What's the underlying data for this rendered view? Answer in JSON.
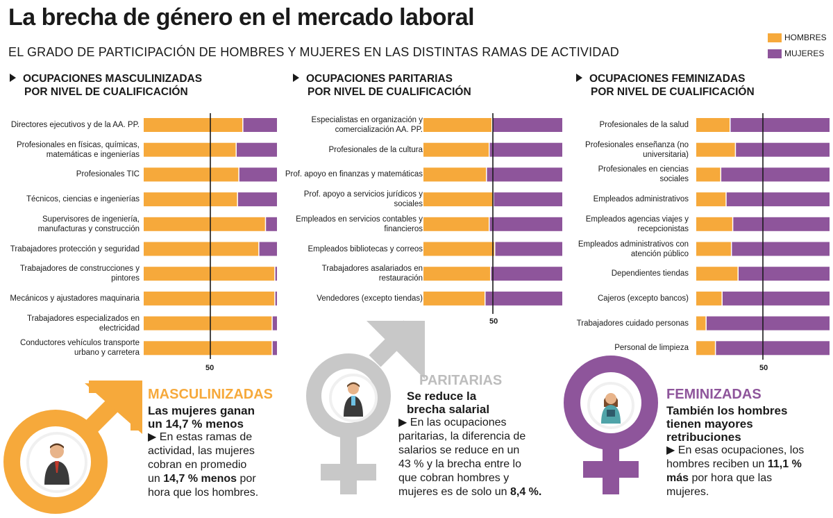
{
  "title": "La brecha de género en el mercado laboral",
  "subtitle": "EL GRADO DE PARTICIPACIÓN DE HOMBRES Y MUJERES EN LAS DISTINTAS RAMAS DE ACTIVIDAD",
  "legend": {
    "hombres": "HOMBRES",
    "mujeres": "MUJERES"
  },
  "colors": {
    "hombres": "#f6a93b",
    "mujeres": "#8e559b",
    "paritarias_head": "#bdbdbd",
    "symbol_gray": "#c8c8c8"
  },
  "sections": {
    "masc": {
      "line1": "OCUPACIONES MASCULINIZADAS",
      "line2": "POR NIVEL DE CUALIFICACIÓN",
      "fifty": "50"
    },
    "par": {
      "line1": "OCUPACIONES PARITARIAS",
      "line2": "POR NIVEL DE CUALIFICACIÓN",
      "fifty": "50"
    },
    "fem": {
      "line1": "OCUPACIONES FEMINIZADAS",
      "line2": "POR NIVEL DE CUALIFICACIÓN",
      "fifty": "50"
    }
  },
  "chart_data": [
    {
      "type": "bar",
      "orientation": "horizontal",
      "stacked": true,
      "title": "OCUPACIONES MASCULINIZADAS POR NIVEL DE CUALIFICACIÓN",
      "xlim": [
        0,
        100
      ],
      "reference_line": 50,
      "categories": [
        "Directores ejecutivos y de la AA. PP.",
        "Profesionales en físicas, químicas, matemáticas e ingenierías",
        "Profesionales TIC",
        "Técnicos, ciencias e ingenierías",
        "Supervisores de ingeniería, manufacturas y construcción",
        "Trabajadores protección y seguridad",
        "Trabajadores de construcciones y pintores",
        "Mecánicos y ajustadores maquinaria",
        "Trabajadores especializados en electricidad",
        "Conductores vehículos transporte urbano y carretera"
      ],
      "series": [
        {
          "name": "HOMBRES",
          "values": [
            74,
            69,
            71,
            70,
            91,
            86,
            98,
            98,
            96,
            96
          ]
        },
        {
          "name": "MUJERES",
          "values": [
            26,
            31,
            29,
            30,
            9,
            14,
            2,
            2,
            4,
            4
          ]
        }
      ]
    },
    {
      "type": "bar",
      "orientation": "horizontal",
      "stacked": true,
      "title": "OCUPACIONES PARITARIAS POR NIVEL DE CUALIFICACIÓN",
      "xlim": [
        0,
        100
      ],
      "reference_line": 50,
      "categories": [
        "Especialistas en organización y comercialización AA. PP.",
        "Profesionales de la cultura",
        "Prof. apoyo en finanzas y matemáticas",
        "Prof. apoyo a servicios jurídicos y sociales",
        "Empleados en servicios contables y financieros",
        "Empleados bibliotecas y correos",
        "Trabajadores asalariados en restauración",
        "Vendedores (excepto tiendas)"
      ],
      "series": [
        {
          "name": "HOMBRES",
          "values": [
            49,
            47,
            45,
            50,
            47,
            51,
            48,
            44
          ]
        },
        {
          "name": "MUJERES",
          "values": [
            51,
            53,
            55,
            50,
            53,
            49,
            52,
            56
          ]
        }
      ]
    },
    {
      "type": "bar",
      "orientation": "horizontal",
      "stacked": true,
      "title": "OCUPACIONES FEMINIZADAS POR NIVEL DE CUALIFICACIÓN",
      "xlim": [
        0,
        100
      ],
      "reference_line": 50,
      "categories": [
        "Profesionales de la salud",
        "Profesionales enseñanza (no universitaria)",
        "Profesionales en ciencias sociales",
        "Empleados administrativos",
        "Empleados agencias viajes y recepcionistas",
        "Empleados administrativos con atención público",
        "Dependientes tiendas",
        "Cajeros (excepto bancos)",
        "Trabajadores cuidado personas",
        "Personal de limpieza"
      ],
      "series": [
        {
          "name": "HOMBRES",
          "values": [
            25,
            29,
            18,
            22,
            27,
            26,
            31,
            19,
            7,
            14
          ]
        },
        {
          "name": "MUJERES",
          "values": [
            75,
            71,
            82,
            78,
            73,
            74,
            69,
            81,
            93,
            86
          ]
        }
      ]
    }
  ],
  "panels": {
    "masc": {
      "head": "MASCULINIZADAS",
      "sub1": "Las mujeres ganan",
      "sub2": "un 14,7 % menos",
      "b1": "En estas ramas de",
      "b2": "actividad, las mujeres",
      "b3": "cobran en promedio",
      "b4a": "un ",
      "b4b": "14,7 % menos",
      "b4c": " por",
      "b5": "hora que los hombres."
    },
    "par": {
      "head": "PARITARIAS",
      "sub1": "Se reduce la",
      "sub2": "brecha salarial",
      "b1": "En las ocupaciones",
      "b2": "paritarias, la diferencia de",
      "b3": "salarios se reduce en un",
      "b4": "43 % y la brecha entre lo",
      "b5": "que cobran hombres y",
      "b6a": "mujeres es de solo un ",
      "b6b": "8,4 %."
    },
    "fem": {
      "head": "FEMINIZADAS",
      "sub1": "También los hombres",
      "sub2": "tienen mayores",
      "sub3": "retribuciones",
      "b1": "En esas ocupaciones, los",
      "b2a": "hombres reciben un ",
      "b2b": "11,1 %",
      "b3a": "más",
      "b3b": " por hora que las",
      "b4": "mujeres."
    }
  }
}
